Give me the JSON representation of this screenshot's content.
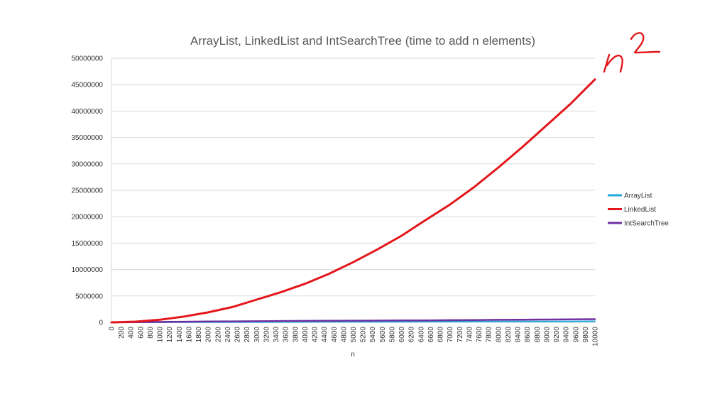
{
  "annotation": {
    "text": "n²"
  },
  "colors": {
    "ArrayList": "#1fa9dd",
    "LinkedList": "#e3171b",
    "IntSearchTree": "#7030a0",
    "annotation": "#e3171b",
    "grid": "#d9d9d9",
    "title": "#595959"
  },
  "chart_data": {
    "type": "line",
    "title": "ArrayList, LinkedList and IntSearchTree (time to add n elements)",
    "xlabel": "n",
    "ylabel": "",
    "xlim": [
      0,
      10000
    ],
    "ylim": [
      0,
      50000000
    ],
    "grid": true,
    "legend_position": "right",
    "y_ticks": [
      "0",
      "5000000",
      "10000000",
      "15000000",
      "20000000",
      "25000000",
      "30000000",
      "35000000",
      "40000000",
      "45000000",
      "50000000"
    ],
    "x_ticks": [
      "0",
      "200",
      "400",
      "600",
      "800",
      "1000",
      "1200",
      "1400",
      "1600",
      "1800",
      "2000",
      "2200",
      "2400",
      "2600",
      "2800",
      "3000",
      "3200",
      "3400",
      "3600",
      "3800",
      "4000",
      "4200",
      "4400",
      "4600",
      "4800",
      "5000",
      "5200",
      "5400",
      "5600",
      "5800",
      "6000",
      "6200",
      "6400",
      "6600",
      "6800",
      "7000",
      "7200",
      "7400",
      "7600",
      "7800",
      "8000",
      "8200",
      "8400",
      "8600",
      "8800",
      "9000",
      "9200",
      "9400",
      "9600",
      "9800",
      "10000"
    ],
    "x": [
      0,
      500,
      1000,
      1500,
      2000,
      2500,
      3000,
      3500,
      4000,
      4500,
      5000,
      5500,
      6000,
      6500,
      7000,
      7500,
      8000,
      8500,
      9000,
      9500,
      10000
    ],
    "series": [
      {
        "name": "ArrayList",
        "values": [
          0,
          10000,
          20000,
          30000,
          40000,
          50000,
          60000,
          70000,
          80000,
          90000,
          100000,
          110000,
          120000,
          130000,
          140000,
          150000,
          160000,
          170000,
          180000,
          190000,
          200000
        ]
      },
      {
        "name": "LinkedList",
        "values": [
          0,
          140000,
          500000,
          1100000,
          1900000,
          2900000,
          4300000,
          5700000,
          7300000,
          9200000,
          11400000,
          13800000,
          16400000,
          19400000,
          22300000,
          25600000,
          29300000,
          33200000,
          37300000,
          41400000,
          46000000
        ]
      },
      {
        "name": "IntSearchTree",
        "values": [
          0,
          40000,
          80000,
          120000,
          160000,
          190000,
          220000,
          250000,
          280000,
          300000,
          320000,
          340000,
          360000,
          380000,
          410000,
          450000,
          480000,
          510000,
          540000,
          570000,
          600000
        ]
      }
    ]
  }
}
